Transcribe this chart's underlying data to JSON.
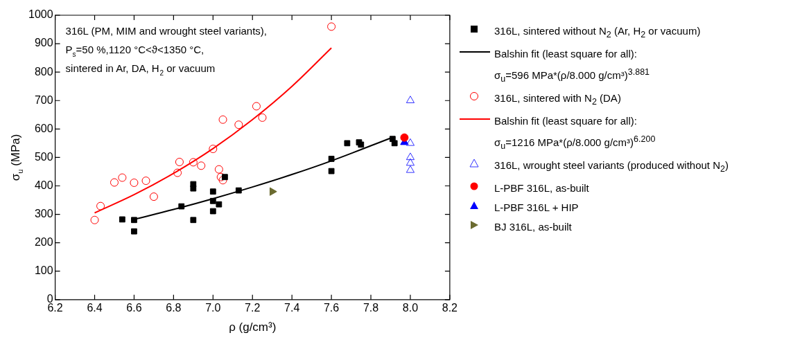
{
  "chart_data": {
    "type": "scatter",
    "xlabel": "ρ (g/cm³)",
    "ylabel": "σ$_{u}$ (MPa)",
    "xlim": [
      6.2,
      8.2
    ],
    "xticks": [
      6.2,
      6.4,
      6.6,
      6.8,
      {
        "value": 7,
        "label": "7.0"
      },
      7.2,
      7.4,
      7.6,
      7.8,
      {
        "value": 8,
        "label": "8.0"
      },
      8.2
    ],
    "ylim": [
      0,
      1000
    ],
    "yticks": [
      0,
      100,
      200,
      300,
      400,
      500,
      600,
      700,
      800,
      900,
      1000
    ],
    "legend": "right",
    "annotations": [
      "316L (PM, MIM and wrought steel variants),",
      "P$_{s}$=50 %,1120 °C<ϑ<1350 °C,",
      "sintered in Ar, DA, H$_{2}$ or vacuum"
    ],
    "series": [
      {
        "name": "316L, sintered without N$_{2}$ (Ar, H$_{2}$ or vacuum)",
        "marker": "square",
        "color": "#000000",
        "x": [
          6.54,
          6.6,
          6.6,
          6.84,
          6.9,
          6.9,
          6.9,
          7.0,
          7.0,
          7.0,
          7.03,
          7.06,
          7.13,
          7.6,
          7.6,
          7.68,
          7.74,
          7.75,
          7.91,
          7.92
        ],
        "values": [
          282,
          280,
          240,
          328,
          280,
          406,
          391,
          380,
          347,
          311,
          335,
          431,
          384,
          452,
          495,
          550,
          553,
          545,
          565,
          550
        ]
      },
      {
        "name": "Balshin fit (least square for all):\nσ$_{u}$=596 MPa*(ρ/8.000 g/cm³)$^{3.881}$",
        "type": "line",
        "marker": "none",
        "color": "#000000",
        "x": [
          6.6,
          6.8,
          7.0,
          7.2,
          7.4,
          7.6,
          7.9
        ],
        "values": [
          282,
          317,
          355,
          396,
          440,
          488,
          568
        ]
      },
      {
        "name": "316L, sintered with N$_{2}$ (DA)",
        "marker": "circle-open",
        "color": "#ff0000",
        "x": [
          6.4,
          6.43,
          6.5,
          6.54,
          6.6,
          6.66,
          6.7,
          6.82,
          6.83,
          6.9,
          6.94,
          7.03,
          7.04,
          7.05,
          7.0,
          7.05,
          7.13,
          7.22,
          7.25,
          7.6
        ],
        "values": [
          280,
          329,
          412,
          429,
          411,
          418,
          362,
          446,
          484,
          483,
          471,
          458,
          431,
          420,
          530,
          633,
          615,
          680,
          640,
          960
        ]
      },
      {
        "name": "Balshin fit (least square for all):\nσ$_{u}$=1216 MPa*(ρ/8.000 g/cm³)$^{6.200}$",
        "type": "line",
        "marker": "none",
        "color": "#ff0000",
        "x": [
          6.4,
          6.6,
          6.8,
          7.0,
          7.2,
          7.4,
          7.6
        ],
        "values": [
          305,
          369,
          444,
          531,
          633,
          750,
          885
        ]
      },
      {
        "name": "316L, wrought steel variants (produced without N$_{2}$)",
        "marker": "triangle-open",
        "color": "#3333ff",
        "x": [
          8.0,
          8.0,
          8.0,
          8.0,
          8.0
        ],
        "values": [
          700,
          550,
          500,
          480,
          455
        ]
      },
      {
        "name": "L-PBF 316L, as-built",
        "marker": "circle",
        "color": "#ff0000",
        "x": [
          7.97
        ],
        "values": [
          570
        ]
      },
      {
        "name": "L-PBF 316L + HIP",
        "marker": "triangle",
        "color": "#0000ff",
        "x": [
          7.97
        ],
        "values": [
          553
        ]
      },
      {
        "name": "BJ 316L, as-built",
        "marker": "triangle-right",
        "color": "#6b6b30",
        "x": [
          7.3
        ],
        "values": [
          380
        ]
      }
    ]
  }
}
